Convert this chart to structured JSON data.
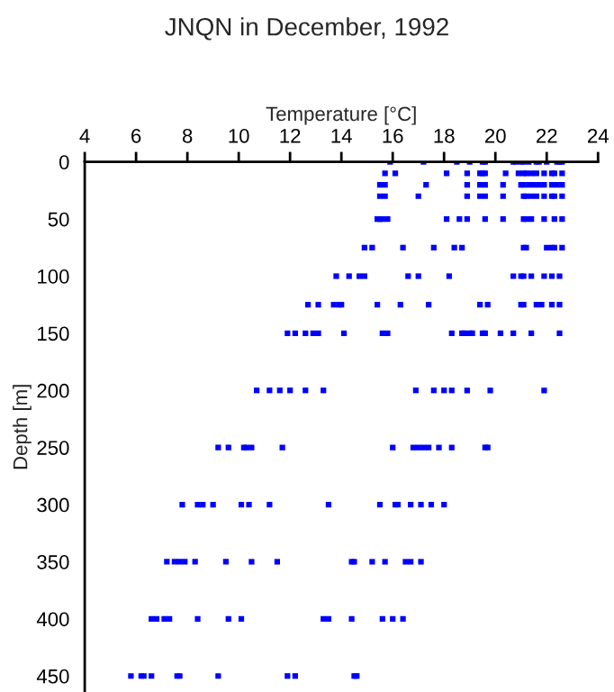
{
  "chart_data": {
    "type": "scatter",
    "title": "JNQN in December, 1992",
    "xlabel": "Temperature [°C]",
    "ylabel": "Depth [m]",
    "xlim": [
      4,
      24
    ],
    "xticks": [
      4,
      6,
      8,
      10,
      12,
      14,
      16,
      18,
      20,
      22,
      24
    ],
    "ylim": [
      464,
      0
    ],
    "yticks": [
      0,
      50,
      100,
      150,
      200,
      250,
      300,
      350,
      400,
      450
    ],
    "grid": false,
    "marker": "square",
    "series": [
      {
        "color": "#0000ff",
        "x": [
          15.9,
          17.2,
          18.5,
          19.0,
          19.5,
          19.6,
          20.7,
          20.8,
          21.0,
          21.1,
          21.3,
          21.6,
          21.7,
          22.0,
          22.4,
          22.5,
          22.6,
          15.7,
          16.1,
          18.1,
          18.9,
          19.4,
          19.5,
          19.6,
          20.4,
          20.9,
          21.1,
          21.2,
          21.4,
          21.6,
          21.9,
          22.2,
          22.3,
          22.6,
          15.5,
          15.7,
          17.3,
          18.9,
          19.4,
          19.6,
          20.3,
          21.0,
          21.1,
          21.3,
          21.5,
          21.7,
          21.9,
          22.2,
          22.4,
          22.6,
          15.5,
          15.7,
          17.0,
          18.9,
          19.4,
          19.6,
          20.3,
          21.1,
          21.2,
          21.4,
          21.6,
          21.9,
          22.2,
          22.3,
          22.6,
          15.4,
          15.5,
          15.6,
          15.8,
          18.1,
          18.6,
          18.9,
          19.6,
          20.3,
          21.1,
          21.2,
          21.4,
          21.9,
          22.3,
          22.6,
          14.9,
          15.2,
          16.4,
          17.6,
          18.4,
          18.7,
          21.1,
          21.2,
          22.0,
          22.2,
          22.3,
          22.6,
          13.8,
          14.3,
          14.7,
          14.9,
          16.6,
          17.0,
          18.2,
          20.7,
          21.0,
          21.1,
          21.4,
          21.9,
          22.2,
          22.5,
          12.7,
          13.1,
          13.7,
          13.9,
          14.0,
          15.4,
          16.3,
          17.4,
          19.4,
          19.7,
          21.0,
          21.1,
          21.6,
          21.8,
          22.2,
          22.5,
          11.9,
          12.2,
          12.6,
          12.9,
          13.1,
          14.1,
          15.6,
          15.8,
          18.3,
          18.7,
          18.8,
          19.0,
          19.1,
          19.5,
          19.6,
          20.2,
          20.7,
          21.4,
          22.5,
          10.7,
          11.2,
          11.6,
          12.0,
          12.6,
          13.3,
          16.9,
          17.6,
          18.0,
          18.3,
          18.9,
          19.8,
          21.9,
          9.2,
          9.6,
          10.2,
          10.3,
          10.5,
          11.7,
          16.0,
          16.8,
          17.0,
          17.2,
          17.4,
          17.8,
          18.3,
          19.6,
          19.7,
          7.8,
          8.4,
          8.6,
          9.0,
          10.1,
          10.4,
          11.2,
          13.5,
          15.5,
          16.1,
          16.2,
          16.7,
          17.1,
          17.5,
          18.0,
          7.2,
          7.5,
          7.7,
          7.9,
          8.3,
          9.5,
          10.5,
          11.5,
          14.4,
          14.5,
          15.2,
          15.7,
          16.5,
          16.7,
          17.1,
          6.6,
          6.8,
          7.1,
          7.3,
          8.4,
          9.6,
          10.1,
          13.3,
          13.5,
          14.4,
          15.6,
          16.0,
          16.4,
          5.8,
          6.2,
          6.3,
          6.6,
          7.6,
          7.7,
          9.2,
          11.9,
          12.2,
          14.5,
          14.6
        ],
        "values": [
          0,
          0,
          0,
          0,
          0,
          0,
          0,
          0,
          0,
          0,
          0,
          0,
          0,
          0,
          0,
          0,
          0,
          10,
          10,
          10,
          10,
          10,
          10,
          10,
          10,
          10,
          10,
          10,
          10,
          10,
          10,
          10,
          10,
          10,
          20,
          20,
          20,
          20,
          20,
          20,
          20,
          20,
          20,
          20,
          20,
          20,
          20,
          20,
          20,
          20,
          30,
          30,
          30,
          30,
          30,
          30,
          30,
          30,
          30,
          30,
          30,
          30,
          30,
          30,
          30,
          50,
          50,
          50,
          50,
          50,
          50,
          50,
          50,
          50,
          50,
          50,
          50,
          50,
          50,
          50,
          75,
          75,
          75,
          75,
          75,
          75,
          75,
          75,
          75,
          75,
          75,
          75,
          100,
          100,
          100,
          100,
          100,
          100,
          100,
          100,
          100,
          100,
          100,
          100,
          100,
          100,
          125,
          125,
          125,
          125,
          125,
          125,
          125,
          125,
          125,
          125,
          125,
          125,
          125,
          125,
          125,
          125,
          150,
          150,
          150,
          150,
          150,
          150,
          150,
          150,
          150,
          150,
          150,
          150,
          150,
          150,
          150,
          150,
          150,
          150,
          150,
          200,
          200,
          200,
          200,
          200,
          200,
          200,
          200,
          200,
          200,
          200,
          200,
          200,
          250,
          250,
          250,
          250,
          250,
          250,
          250,
          250,
          250,
          250,
          250,
          250,
          250,
          250,
          250,
          300,
          300,
          300,
          300,
          300,
          300,
          300,
          300,
          300,
          300,
          300,
          300,
          300,
          300,
          300,
          350,
          350,
          350,
          350,
          350,
          350,
          350,
          350,
          350,
          350,
          350,
          350,
          350,
          350,
          350,
          400,
          400,
          400,
          400,
          400,
          400,
          400,
          400,
          400,
          400,
          400,
          400,
          400,
          450,
          450,
          450,
          450,
          450,
          450,
          450,
          450,
          450,
          450,
          450
        ]
      }
    ]
  }
}
